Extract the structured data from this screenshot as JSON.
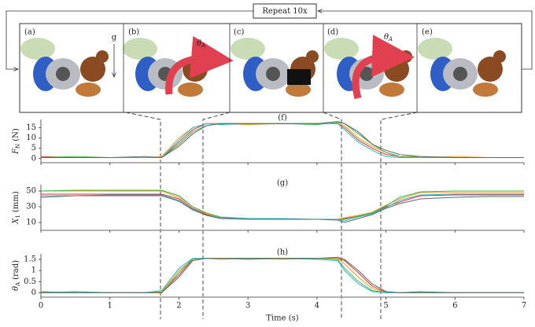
{
  "figure": {
    "repeat": "Repeat 10x",
    "panels": [
      "(a)",
      "(b)",
      "(c)",
      "(d)",
      "(e)"
    ],
    "gravity": "g",
    "angle": "θ",
    "angle_sub": "A"
  },
  "chart_data": [
    {
      "type": "line",
      "title": "(f)",
      "ylabel": "F",
      "ylabel_sub": "N",
      "ylabel_unit": "(N)",
      "x": [
        0,
        0.5,
        1,
        1.5,
        1.75,
        2,
        2.2,
        2.4,
        2.6,
        3,
        3.5,
        4,
        4.3,
        4.4,
        4.6,
        4.8,
        5,
        5.2,
        5.5,
        6,
        6.5,
        7
      ],
      "xlim": [
        0,
        7
      ],
      "xticks": [
        0,
        1,
        2,
        3,
        4,
        5,
        6,
        7
      ],
      "ylim": [
        -2,
        19
      ],
      "yticks": [
        0,
        5,
        10,
        15
      ],
      "series": [
        {
          "color": "#e0302a",
          "values": [
            1,
            0.5,
            0.5,
            0.5,
            0.5,
            8,
            14,
            17,
            17,
            17,
            17,
            17,
            17,
            15,
            9,
            5,
            2,
            1,
            0.5,
            0.5,
            0.5,
            0.5
          ]
        },
        {
          "color": "#f39a1c",
          "values": [
            0.5,
            0.5,
            0.5,
            0.5,
            1,
            10,
            15,
            17,
            17,
            16.5,
            17,
            17,
            17,
            16,
            10,
            6,
            3,
            1,
            0.5,
            1,
            0.5,
            0.5
          ]
        },
        {
          "color": "#3bb54a",
          "values": [
            0.5,
            1,
            0.5,
            0.5,
            0.5,
            7,
            13,
            16,
            17,
            17,
            17,
            16.5,
            17.5,
            17,
            12,
            7,
            3,
            1,
            1,
            0.5,
            0.5,
            0.5
          ]
        },
        {
          "color": "#27b7d6",
          "values": [
            0.5,
            0.5,
            0.5,
            0.5,
            0.5,
            9,
            15,
            17,
            16.5,
            17,
            17,
            17,
            17,
            14,
            8,
            4,
            1,
            0.5,
            0.5,
            0.5,
            0.5,
            0.5
          ]
        },
        {
          "color": "#666666",
          "values": [
            0.5,
            0.5,
            0.5,
            1,
            0.5,
            6,
            12,
            16,
            17,
            17,
            17,
            17,
            18,
            17,
            13,
            7,
            4,
            2,
            1,
            0.5,
            0.5,
            0.5
          ]
        }
      ]
    },
    {
      "type": "line",
      "title": "(g)",
      "ylabel": "X",
      "ylabel_sub": "1",
      "ylabel_unit": "(mm)",
      "x": [
        0,
        0.5,
        1,
        1.5,
        1.75,
        2,
        2.2,
        2.4,
        2.6,
        3,
        3.5,
        4,
        4.3,
        4.4,
        4.6,
        4.8,
        5,
        5.2,
        5.5,
        6,
        6.5,
        7
      ],
      "xlim": [
        0,
        7
      ],
      "xticks": [
        0,
        1,
        2,
        3,
        4,
        5,
        6,
        7
      ],
      "ylim": [
        0,
        58
      ],
      "yticks": [
        10,
        30,
        50
      ],
      "series": [
        {
          "color": "#e0302a",
          "values": [
            46,
            46,
            46,
            46,
            46,
            40,
            28,
            20,
            16,
            15,
            14,
            14,
            14,
            15,
            18,
            22,
            30,
            36,
            44,
            45,
            45,
            45
          ]
        },
        {
          "color": "#f39a1c",
          "values": [
            50,
            50,
            50,
            50,
            50,
            42,
            30,
            21,
            16,
            15,
            14,
            14,
            14,
            16,
            19,
            23,
            32,
            40,
            48,
            48,
            48,
            48
          ]
        },
        {
          "color": "#3bb54a",
          "values": [
            50,
            51,
            51,
            51,
            51,
            44,
            30,
            22,
            17,
            15,
            14,
            14,
            14,
            14,
            18,
            22,
            31,
            42,
            49,
            50,
            50,
            50
          ]
        },
        {
          "color": "#27b7d6",
          "values": [
            44,
            44,
            45,
            45,
            45,
            38,
            27,
            19,
            16,
            15,
            15,
            14,
            14,
            12,
            17,
            21,
            29,
            38,
            45,
            46,
            46,
            46
          ]
        },
        {
          "color": "#666666",
          "values": [
            42,
            44,
            44,
            44,
            44,
            37,
            26,
            19,
            15,
            14,
            14,
            14,
            13,
            10,
            15,
            20,
            28,
            34,
            40,
            42,
            43,
            43
          ]
        }
      ]
    },
    {
      "type": "line",
      "title": "(h)",
      "ylabel": "θ",
      "ylabel_sub": "A",
      "ylabel_unit": "(rad)",
      "xlabel": "Time (s)",
      "x": [
        0,
        0.5,
        1,
        1.5,
        1.75,
        2,
        2.2,
        2.4,
        2.6,
        3,
        3.5,
        4,
        4.3,
        4.4,
        4.6,
        4.8,
        5,
        5.2,
        5.5,
        6,
        6.5,
        7
      ],
      "xlim": [
        0,
        7
      ],
      "xticks": [
        0,
        1,
        2,
        3,
        4,
        5,
        6,
        7
      ],
      "ylim": [
        -0.2,
        1.75
      ],
      "yticks": [
        0,
        0.5,
        1,
        1.5
      ],
      "series": [
        {
          "color": "#e0302a",
          "values": [
            0,
            0,
            0,
            0,
            0.02,
            0.8,
            1.5,
            1.55,
            1.55,
            1.55,
            1.55,
            1.55,
            1.55,
            1.45,
            0.9,
            0.3,
            0.02,
            0,
            0,
            0,
            0,
            0
          ]
        },
        {
          "color": "#f39a1c",
          "values": [
            0,
            0,
            0,
            0,
            0.05,
            1.0,
            1.5,
            1.55,
            1.5,
            1.55,
            1.5,
            1.55,
            1.55,
            1.3,
            0.7,
            0.2,
            0,
            0,
            0,
            0,
            0,
            0
          ]
        },
        {
          "color": "#3bb54a",
          "values": [
            0.05,
            0,
            0,
            0,
            0,
            0.9,
            1.55,
            1.55,
            1.55,
            1.5,
            1.55,
            1.55,
            1.5,
            1.1,
            0.5,
            0.1,
            0,
            0,
            0.05,
            0,
            0,
            0
          ]
        },
        {
          "color": "#27b7d6",
          "values": [
            0,
            0.05,
            0,
            0,
            0.1,
            1.1,
            1.55,
            1.55,
            1.55,
            1.55,
            1.55,
            1.5,
            1.45,
            1.0,
            0.4,
            0.05,
            0,
            0,
            0,
            0,
            0,
            0
          ]
        },
        {
          "color": "#666666",
          "values": [
            0,
            0,
            0,
            0,
            0,
            0.7,
            1.45,
            1.55,
            1.55,
            1.55,
            1.55,
            1.55,
            1.6,
            1.5,
            1.0,
            0.4,
            0.05,
            0,
            0,
            0,
            0,
            0
          ]
        }
      ]
    }
  ]
}
